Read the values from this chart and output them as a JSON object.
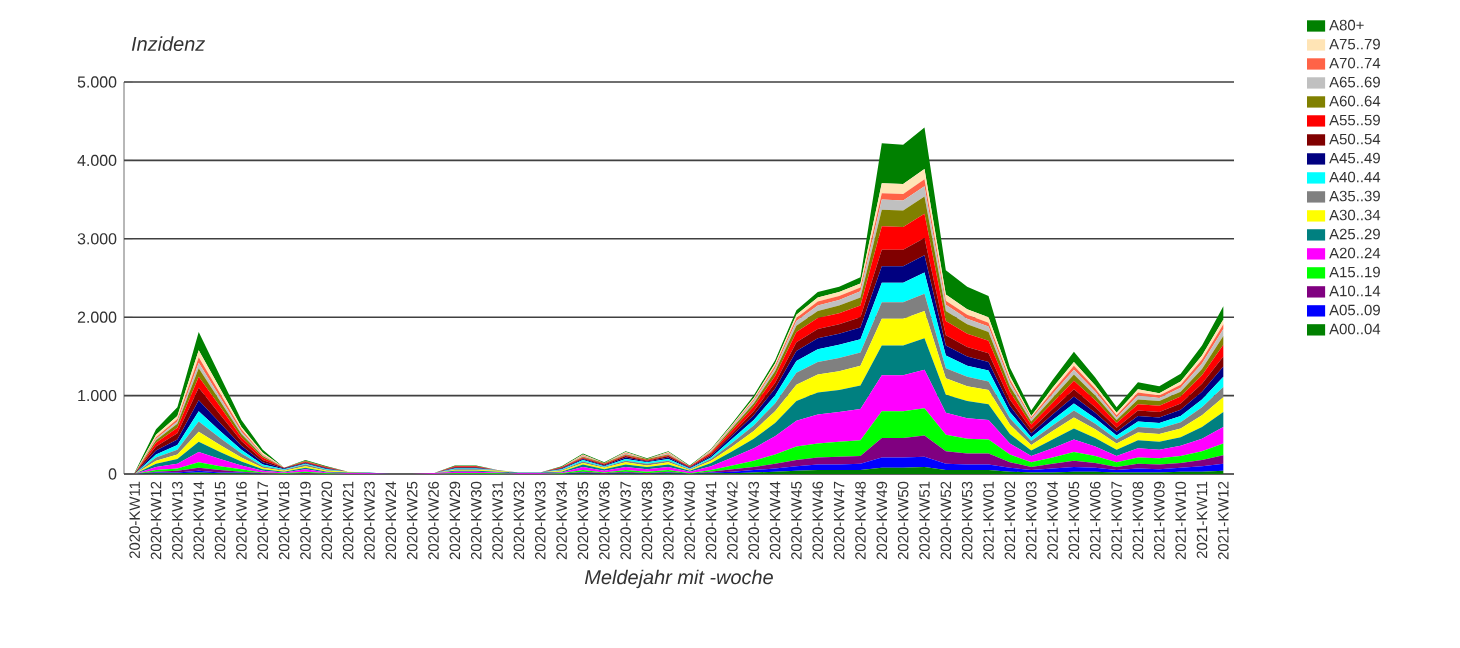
{
  "chart_data": {
    "type": "area",
    "stacked": true,
    "title": "Inzidenz",
    "xlabel": "Meldejahr mit -woche",
    "categories": [
      "2020-KW11",
      "2020-KW12",
      "2020-KW13",
      "2020-KW14",
      "2020-KW15",
      "2020-KW16",
      "2020-KW17",
      "2020-KW18",
      "2020-KW19",
      "2020-KW20",
      "2020-KW21",
      "2020-KW23",
      "2020-KW24",
      "2020-KW25",
      "2020-KW26",
      "2020-KW29",
      "2020-KW30",
      "2020-KW31",
      "2020-KW32",
      "2020-KW33",
      "2020-KW34",
      "2020-KW35",
      "2020-KW36",
      "2020-KW37",
      "2020-KW38",
      "2020-KW39",
      "2020-KW40",
      "2020-KW41",
      "2020-KW42",
      "2020-KW43",
      "2020-KW44",
      "2020-KW45",
      "2020-KW46",
      "2020-KW47",
      "2020-KW48",
      "2020-KW49",
      "2020-KW50",
      "2020-KW51",
      "2020-KW52",
      "2020-KW53",
      "2021-KW01",
      "2021-KW02",
      "2021-KW03",
      "2021-KW04",
      "2021-KW05",
      "2021-KW06",
      "2021-KW07",
      "2021-KW08",
      "2021-KW09",
      "2021-KW10",
      "2021-KW11",
      "2021-KW12"
    ],
    "ylim": [
      0,
      5000
    ],
    "yticks": [
      0,
      {
        "value": 1000,
        "label": "1.000"
      },
      {
        "value": 2000,
        "label": "2.000"
      },
      {
        "value": 3000,
        "label": "3.000"
      },
      {
        "value": 4000,
        "label": "4.000"
      },
      {
        "value": 5000,
        "label": "5.000"
      }
    ],
    "grid": "y",
    "legend": "right",
    "series": [
      {
        "name": "A00..04",
        "color": "#008000",
        "values": [
          0,
          10,
          10,
          20,
          10,
          10,
          0,
          0,
          0,
          0,
          0,
          0,
          0,
          0,
          0,
          0,
          0,
          0,
          0,
          0,
          0,
          10,
          0,
          10,
          0,
          10,
          0,
          10,
          10,
          20,
          30,
          40,
          50,
          50,
          50,
          80,
          80,
          90,
          50,
          50,
          50,
          30,
          20,
          20,
          30,
          30,
          20,
          20,
          20,
          30,
          30,
          40
        ]
      },
      {
        "name": "A05..09",
        "color": "#0000ff",
        "values": [
          0,
          10,
          10,
          20,
          10,
          10,
          0,
          0,
          0,
          0,
          0,
          0,
          0,
          0,
          0,
          0,
          0,
          0,
          0,
          0,
          0,
          10,
          0,
          10,
          0,
          10,
          0,
          10,
          20,
          30,
          40,
          60,
          70,
          70,
          80,
          130,
          130,
          130,
          80,
          70,
          70,
          50,
          30,
          50,
          60,
          50,
          30,
          50,
          40,
          50,
          70,
          90
        ]
      },
      {
        "name": "A10..14",
        "color": "#800080",
        "values": [
          0,
          10,
          20,
          40,
          30,
          10,
          10,
          0,
          10,
          0,
          0,
          0,
          0,
          0,
          0,
          0,
          0,
          0,
          0,
          0,
          0,
          10,
          10,
          10,
          10,
          10,
          0,
          10,
          30,
          40,
          60,
          80,
          90,
          100,
          100,
          250,
          250,
          270,
          160,
          140,
          140,
          70,
          40,
          60,
          80,
          60,
          40,
          60,
          60,
          60,
          80,
          110
        ]
      },
      {
        "name": "A15..19",
        "color": "#00ff00",
        "values": [
          0,
          20,
          30,
          70,
          50,
          30,
          10,
          10,
          20,
          10,
          0,
          0,
          0,
          0,
          0,
          10,
          10,
          10,
          0,
          0,
          10,
          20,
          10,
          20,
          20,
          20,
          10,
          20,
          50,
          80,
          120,
          170,
          180,
          190,
          200,
          340,
          340,
          350,
          210,
          190,
          180,
          100,
          60,
          80,
          110,
          90,
          60,
          80,
          80,
          90,
          110,
          150
        ]
      },
      {
        "name": "A20..24",
        "color": "#ff00ff",
        "values": [
          0,
          40,
          60,
          130,
          90,
          50,
          20,
          10,
          30,
          10,
          10,
          10,
          0,
          0,
          10,
          20,
          20,
          10,
          10,
          10,
          10,
          40,
          20,
          40,
          30,
          40,
          20,
          50,
          100,
          160,
          230,
          330,
          370,
          380,
          400,
          460,
          460,
          490,
          280,
          260,
          250,
          140,
          80,
          120,
          160,
          120,
          80,
          120,
          110,
          130,
          160,
          210
        ]
      },
      {
        "name": "A25..29",
        "color": "#008080",
        "values": [
          0,
          40,
          60,
          130,
          90,
          50,
          20,
          10,
          20,
          10,
          10,
          10,
          0,
          0,
          0,
          10,
          10,
          10,
          10,
          10,
          10,
          30,
          20,
          30,
          30,
          30,
          10,
          40,
          80,
          120,
          170,
          250,
          280,
          280,
          300,
          380,
          380,
          400,
          230,
          220,
          200,
          120,
          70,
          110,
          140,
          110,
          80,
          100,
          100,
          110,
          150,
          190
        ]
      },
      {
        "name": "A30..34",
        "color": "#ffff00",
        "values": [
          0,
          40,
          60,
          130,
          90,
          50,
          20,
          10,
          20,
          10,
          10,
          0,
          0,
          0,
          0,
          10,
          10,
          10,
          0,
          0,
          10,
          20,
          20,
          30,
          20,
          30,
          10,
          30,
          60,
          100,
          150,
          210,
          230,
          240,
          250,
          340,
          340,
          350,
          210,
          190,
          180,
          120,
          70,
          110,
          140,
          110,
          80,
          100,
          100,
          110,
          150,
          190
        ]
      },
      {
        "name": "A35..39",
        "color": "#808080",
        "values": [
          0,
          40,
          60,
          130,
          90,
          50,
          20,
          10,
          20,
          10,
          0,
          0,
          0,
          0,
          0,
          10,
          10,
          10,
          0,
          0,
          10,
          20,
          10,
          20,
          20,
          20,
          10,
          20,
          50,
          70,
          100,
          150,
          160,
          170,
          170,
          210,
          210,
          220,
          130,
          120,
          110,
          80,
          50,
          70,
          90,
          70,
          50,
          70,
          70,
          80,
          100,
          130
        ]
      },
      {
        "name": "A40..44",
        "color": "#00ffff",
        "values": [
          0,
          40,
          60,
          130,
          90,
          50,
          20,
          10,
          10,
          10,
          0,
          0,
          0,
          0,
          0,
          10,
          10,
          0,
          0,
          0,
          10,
          20,
          10,
          20,
          20,
          20,
          10,
          20,
          50,
          70,
          100,
          150,
          160,
          170,
          170,
          250,
          250,
          270,
          160,
          140,
          140,
          80,
          50,
          70,
          90,
          70,
          50,
          70,
          70,
          80,
          100,
          130
        ]
      },
      {
        "name": "A45..49",
        "color": "#000080",
        "values": [
          0,
          50,
          70,
          140,
          100,
          50,
          30,
          10,
          10,
          10,
          0,
          0,
          0,
          0,
          0,
          10,
          10,
          0,
          0,
          0,
          10,
          10,
          10,
          20,
          10,
          20,
          10,
          20,
          40,
          60,
          90,
          130,
          140,
          140,
          150,
          210,
          210,
          220,
          130,
          120,
          110,
          80,
          50,
          70,
          90,
          70,
          50,
          70,
          70,
          80,
          100,
          130
        ]
      },
      {
        "name": "A50..54",
        "color": "#800000",
        "values": [
          10,
          50,
          80,
          160,
          110,
          60,
          30,
          10,
          10,
          10,
          0,
          0,
          0,
          0,
          0,
          10,
          10,
          0,
          0,
          0,
          10,
          10,
          10,
          20,
          10,
          20,
          10,
          20,
          30,
          50,
          70,
          110,
          120,
          120,
          130,
          210,
          210,
          220,
          130,
          120,
          110,
          80,
          50,
          70,
          90,
          70,
          50,
          70,
          70,
          80,
          100,
          130
        ]
      },
      {
        "name": "A55..59",
        "color": "#ff0000",
        "values": [
          0,
          50,
          70,
          140,
          100,
          50,
          30,
          0,
          10,
          10,
          0,
          0,
          0,
          0,
          0,
          10,
          10,
          0,
          0,
          0,
          10,
          10,
          10,
          10,
          10,
          10,
          10,
          20,
          40,
          60,
          90,
          130,
          140,
          140,
          150,
          300,
          290,
          310,
          180,
          170,
          160,
          100,
          60,
          80,
          110,
          90,
          60,
          80,
          80,
          90,
          110,
          150
        ]
      },
      {
        "name": "A60..64",
        "color": "#808000",
        "values": [
          0,
          30,
          50,
          110,
          70,
          40,
          20,
          0,
          10,
          0,
          0,
          0,
          0,
          0,
          0,
          0,
          0,
          0,
          0,
          0,
          0,
          10,
          10,
          10,
          10,
          10,
          0,
          10,
          30,
          40,
          60,
          80,
          90,
          100,
          100,
          210,
          210,
          220,
          130,
          120,
          110,
          70,
          40,
          60,
          80,
          60,
          40,
          60,
          60,
          60,
          80,
          110
        ]
      },
      {
        "name": "A65..69",
        "color": "#c0c0c0",
        "values": [
          0,
          20,
          30,
          70,
          50,
          30,
          10,
          0,
          0,
          0,
          0,
          0,
          0,
          0,
          0,
          0,
          0,
          0,
          0,
          0,
          0,
          10,
          0,
          10,
          0,
          10,
          0,
          10,
          20,
          30,
          40,
          60,
          70,
          70,
          80,
          130,
          130,
          130,
          80,
          70,
          70,
          50,
          30,
          50,
          60,
          50,
          30,
          50,
          40,
          50,
          70,
          90
        ]
      },
      {
        "name": "A70..74",
        "color": "#ff6347",
        "values": [
          0,
          20,
          30,
          70,
          50,
          30,
          10,
          0,
          0,
          0,
          0,
          0,
          0,
          0,
          0,
          0,
          0,
          0,
          0,
          0,
          0,
          10,
          0,
          10,
          0,
          10,
          0,
          10,
          10,
          20,
          30,
          40,
          50,
          50,
          50,
          80,
          80,
          90,
          50,
          50,
          50,
          40,
          20,
          40,
          50,
          40,
          30,
          40,
          30,
          40,
          50,
          60
        ]
      },
      {
        "name": "A75..79",
        "color": "#ffe4b5",
        "values": [
          0,
          30,
          40,
          90,
          60,
          30,
          20,
          0,
          0,
          0,
          0,
          0,
          0,
          0,
          0,
          0,
          0,
          0,
          0,
          0,
          0,
          10,
          0,
          10,
          0,
          10,
          0,
          10,
          10,
          20,
          30,
          40,
          50,
          50,
          50,
          130,
          130,
          130,
          80,
          70,
          70,
          40,
          20,
          40,
          50,
          40,
          30,
          40,
          30,
          40,
          50,
          60
        ]
      },
      {
        "name": "A80+",
        "color": "#008000",
        "values": [
          10,
          70,
          110,
          230,
          160,
          90,
          40,
          0,
          10,
          10,
          0,
          0,
          0,
          0,
          0,
          10,
          10,
          0,
          0,
          0,
          10,
          10,
          10,
          10,
          10,
          10,
          10,
          10,
          20,
          30,
          40,
          60,
          70,
          70,
          80,
          510,
          500,
          530,
          310,
          290,
          270,
          110,
          70,
          100,
          130,
          100,
          70,
          90,
          90,
          100,
          130,
          170
        ]
      }
    ]
  }
}
